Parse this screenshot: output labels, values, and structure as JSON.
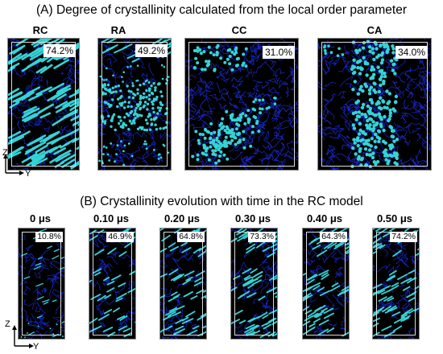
{
  "panel_a": {
    "title": "(A) Degree of crystallinity calculated from the local order parameter",
    "models": [
      {
        "label": "RC",
        "crystallinity": "74.2%"
      },
      {
        "label": "RA",
        "crystallinity": "49.2%"
      },
      {
        "label": "CC",
        "crystallinity": "31.0%"
      },
      {
        "label": "CA",
        "crystallinity": "34.0%"
      }
    ]
  },
  "panel_b": {
    "title": "(B) Crystallinity evolution with time in the RC model",
    "frames": [
      {
        "label": "0 μs",
        "crystallinity": "10.8%"
      },
      {
        "label": "0.10 μs",
        "crystallinity": "46.9%"
      },
      {
        "label": "0.20 μs",
        "crystallinity": "64.8%"
      },
      {
        "label": "0.30 μs",
        "crystallinity": "73.3%"
      },
      {
        "label": "0.40 μs",
        "crystallinity": "64.3%"
      },
      {
        "label": "0.50 μs",
        "crystallinity": "74.2%"
      }
    ]
  },
  "axes": {
    "z": "Z",
    "y": "Y"
  },
  "colors": {
    "crystal": "#35d3d6",
    "amorphous": "#1a28c8",
    "background": "#000000"
  }
}
